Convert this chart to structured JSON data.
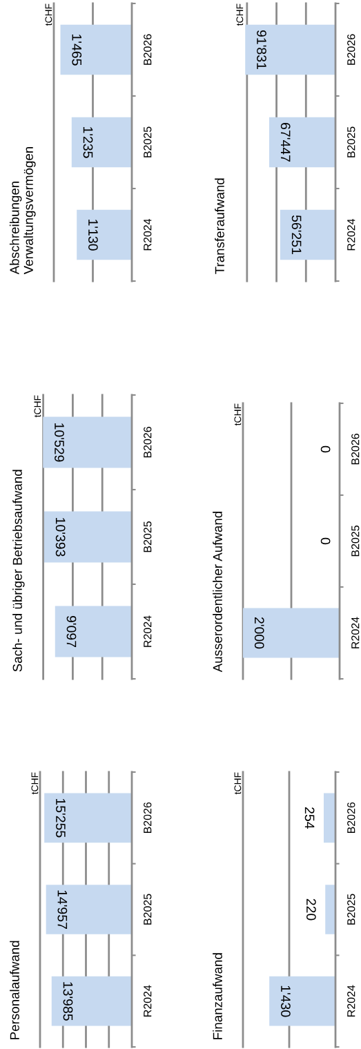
{
  "chart_data": [
    {
      "type": "bar",
      "title": "Personalaufwand",
      "annotations": [
        "tCHF"
      ],
      "orientation": "horizontal",
      "categories": [
        "B2026",
        "B2025",
        "R2024"
      ],
      "values": [
        15255,
        14957,
        13985
      ],
      "value_labels": [
        "15'255",
        "14'957",
        "13'985"
      ],
      "color": "#c6d9f0",
      "xlim": [
        16000,
        0
      ],
      "xticks": [
        {
          "value": 4000,
          "label": null
        },
        {
          "value": 8000,
          "label": null
        },
        {
          "value": 12000,
          "label": null
        },
        {
          "value": 16000,
          "label": null
        }
      ],
      "grid": "x",
      "tick_labels": "y"
    },
    {
      "type": "bar",
      "title": "Sach- und übriger Betriebsaufwand",
      "annotations": [
        "tCHF"
      ],
      "orientation": "horizontal",
      "categories": [
        "B2026",
        "B2025",
        "R2024"
      ],
      "values": [
        10529,
        10393,
        9097
      ],
      "value_labels": [
        "10'529",
        "10'393",
        "9'097"
      ],
      "color": "#c6d9f0",
      "xlim": [
        10550,
        0
      ],
      "xticks": [
        {
          "value": 3500,
          "label": null
        },
        {
          "value": 7000,
          "label": null
        },
        {
          "value": 10500,
          "label": null
        }
      ],
      "grid": "x",
      "tick_labels": "y"
    },
    {
      "type": "bar",
      "title": "Abschreibungen\nVerwaltungsvermögen",
      "annotations": [
        "tCHF"
      ],
      "orientation": "horizontal",
      "categories": [
        "B2026",
        "B2025",
        "R2024"
      ],
      "values": [
        1465,
        1235,
        1130
      ],
      "value_labels": [
        "1'465",
        "1'235",
        "1'130"
      ],
      "color": "#c6d9f0",
      "xlim": [
        1600,
        0
      ],
      "xticks": [
        {
          "value": 800,
          "label": null
        },
        {
          "value": 1600,
          "label": null
        }
      ],
      "grid": "x",
      "tick_labels": "y"
    },
    {
      "type": "bar",
      "title": "Finanzaufwand",
      "annotations": [
        "tCHF"
      ],
      "orientation": "horizontal",
      "categories": [
        "B2026",
        "B2025",
        "R2024"
      ],
      "values": [
        254,
        220,
        1430
      ],
      "value_labels": [
        "254",
        "220",
        "1'430"
      ],
      "color": "#c6d9f0",
      "xlim": [
        2000,
        0
      ],
      "xticks": [
        {
          "value": 1000,
          "label": null
        },
        {
          "value": 2000,
          "label": null
        }
      ],
      "grid": "x",
      "tick_labels": "y"
    },
    {
      "type": "bar",
      "title": "Ausserordentlicher Aufwand",
      "annotations": [
        "tCHF"
      ],
      "orientation": "horizontal",
      "categories": [
        "B2026",
        "B2025",
        "R2024"
      ],
      "values": [
        0,
        0,
        2000
      ],
      "value_labels": [
        "0",
        "0",
        "2'000"
      ],
      "color": "#c6d9f0",
      "xlim": [
        2000,
        0
      ],
      "xticks": [
        {
          "value": 1000,
          "label": null
        },
        {
          "value": 2000,
          "label": null
        }
      ],
      "grid": "x",
      "tick_labels": "y"
    },
    {
      "type": "bar",
      "title": "Transferaufwand",
      "annotations": [
        "tCHF"
      ],
      "orientation": "horizontal",
      "categories": [
        "B2026",
        "B2025",
        "R2024"
      ],
      "values": [
        91831,
        67447,
        56251
      ],
      "value_labels": [
        "91'831",
        "67'447",
        "56'251"
      ],
      "color": "#c6d9f0",
      "xlim": [
        92000,
        0
      ],
      "xticks": [
        {
          "value": 30000,
          "label": null
        },
        {
          "value": 60000,
          "label": null
        },
        {
          "value": 90000,
          "label": null
        }
      ],
      "grid": "x",
      "tick_labels": "y"
    }
  ]
}
